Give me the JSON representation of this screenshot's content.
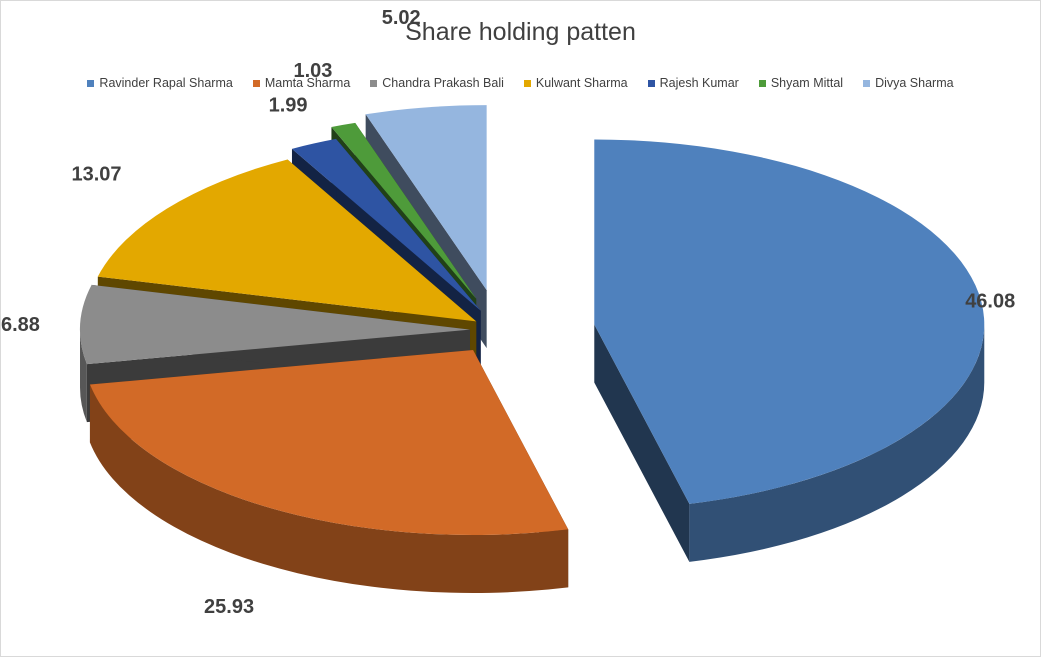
{
  "chart_data": {
    "type": "pie",
    "title": "Share holding patten",
    "legend_position": "top",
    "exploded": true,
    "three_d": true,
    "categories": [
      "Ravinder Rapal Sharma",
      "Mamta Sharma",
      "Chandra Prakash  Bali",
      "Kulwant Sharma",
      "Rajesh Kumar",
      "Shyam Mittal",
      "Divya Sharma"
    ],
    "values": [
      46.08,
      25.93,
      6.88,
      13.07,
      1.99,
      1.03,
      5.02
    ],
    "labels": [
      "46.08",
      "25.93",
      "6.88",
      "13.07",
      "1.99",
      "1.03",
      "5.02"
    ],
    "colors": [
      "#4f81bd",
      "#d26a27",
      "#8c8c8c",
      "#e3a800",
      "#2e54a3",
      "#4e9b3a",
      "#95b6df"
    ]
  }
}
